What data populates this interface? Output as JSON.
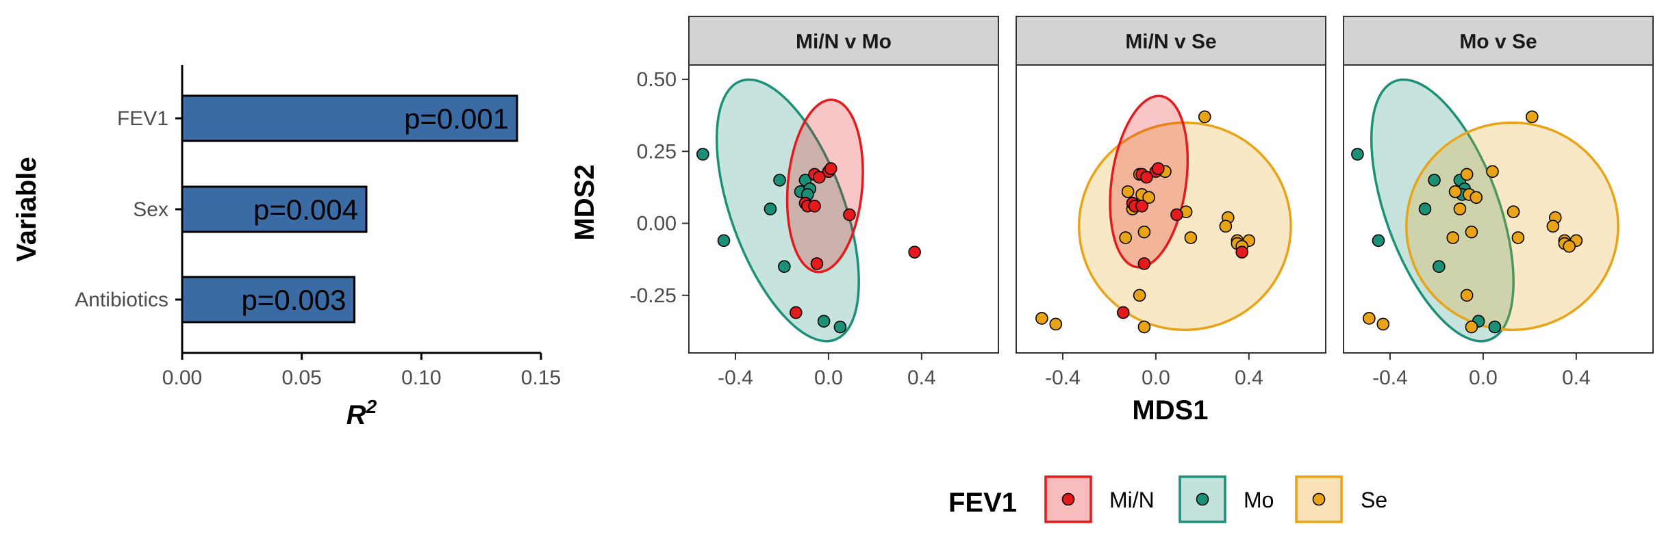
{
  "chart_data": [
    {
      "type": "bar",
      "orientation": "horizontal",
      "categories": [
        "FEV1",
        "Sex",
        "Antibiotics"
      ],
      "values": [
        0.14,
        0.077,
        0.072
      ],
      "bar_labels": [
        "p=0.001",
        "p=0.004",
        "p=0.003"
      ],
      "xlabel_base": "R",
      "xlabel_sup": "2",
      "ylabel": "Variable",
      "xlim": [
        0,
        0.15
      ],
      "x_ticks": [
        0.0,
        0.05,
        0.1,
        0.15
      ],
      "x_tick_labels": [
        "0.00",
        "0.05",
        "0.10",
        "0.15"
      ],
      "bar_color": "#3b6ba5",
      "grid": false
    },
    {
      "type": "scatter",
      "xlabel": "MDS1",
      "ylabel": "MDS2",
      "xlim": [
        -0.6,
        0.73
      ],
      "ylim": [
        -0.45,
        0.55
      ],
      "x_ticks": [
        -0.4,
        0.0,
        0.4
      ],
      "x_tick_labels": [
        "-0.4",
        "0.0",
        "0.4"
      ],
      "y_ticks": [
        -0.25,
        0.0,
        0.25,
        0.5
      ],
      "y_tick_labels": [
        "-0.25",
        "0.00",
        "0.25",
        "0.50"
      ],
      "grid": false,
      "legend": {
        "title": "FEV1",
        "placement": "bottom",
        "items": [
          {
            "label": "Mi/N",
            "color": "#e41a1c",
            "fill": "#f8bcbc"
          },
          {
            "label": "Mo",
            "color": "#1b9077",
            "fill": "#c4e2dc"
          },
          {
            "label": "Se",
            "color": "#e8a317",
            "fill": "#f9e2b8"
          }
        ]
      },
      "panels": [
        {
          "title": "Mi/N v Mo",
          "series": [
            {
              "name": "Mo",
              "points": [
                [
                  -0.54,
                  0.24
                ],
                [
                  -0.21,
                  0.15
                ],
                [
                  -0.25,
                  0.05
                ],
                [
                  -0.12,
                  0.11
                ],
                [
                  -0.1,
                  0.15
                ],
                [
                  -0.08,
                  0.12
                ],
                [
                  -0.09,
                  0.1
                ],
                [
                  -0.45,
                  -0.06
                ],
                [
                  -0.19,
                  -0.15
                ],
                [
                  -0.02,
                  -0.34
                ],
                [
                  0.05,
                  -0.36
                ]
              ],
              "ellipse": {
                "cx": -0.175,
                "cy": 0.045,
                "rx": 0.243,
                "ry": 0.478,
                "angle_deg": -20
              }
            },
            {
              "name": "Mi/N",
              "points": [
                [
                  -0.06,
                  0.17
                ],
                [
                  0.0,
                  0.18
                ],
                [
                  0.01,
                  0.19
                ],
                [
                  -0.04,
                  0.16
                ],
                [
                  -0.1,
                  0.07
                ],
                [
                  -0.09,
                  0.06
                ],
                [
                  -0.06,
                  0.06
                ],
                [
                  0.09,
                  0.03
                ],
                [
                  -0.05,
                  -0.14
                ],
                [
                  -0.14,
                  -0.31
                ],
                [
                  0.37,
                  -0.1
                ]
              ],
              "ellipse": {
                "cx": -0.015,
                "cy": 0.13,
                "rx": 0.16,
                "ry": 0.3,
                "angle_deg": 5
              }
            }
          ]
        },
        {
          "title": "Mi/N v Se",
          "series": [
            {
              "name": "Se",
              "points": [
                [
                  -0.07,
                  0.17
                ],
                [
                  0.04,
                  0.18
                ],
                [
                  -0.06,
                  0.1
                ],
                [
                  -0.03,
                  0.09
                ],
                [
                  -0.12,
                  0.11
                ],
                [
                  -0.1,
                  0.05
                ],
                [
                  0.13,
                  0.04
                ],
                [
                  0.21,
                  0.37
                ],
                [
                  0.31,
                  0.02
                ],
                [
                  0.3,
                  -0.01
                ],
                [
                  -0.05,
                  -0.03
                ],
                [
                  -0.13,
                  -0.05
                ],
                [
                  0.15,
                  -0.05
                ],
                [
                  0.35,
                  -0.06
                ],
                [
                  0.4,
                  -0.06
                ],
                [
                  0.35,
                  -0.07
                ],
                [
                  0.37,
                  -0.08
                ],
                [
                  -0.07,
                  -0.25
                ],
                [
                  -0.49,
                  -0.33
                ],
                [
                  -0.43,
                  -0.35
                ],
                [
                  -0.05,
                  -0.36
                ]
              ],
              "ellipse": {
                "cx": 0.125,
                "cy": -0.01,
                "rx": 0.455,
                "ry": 0.36,
                "angle_deg": 0
              }
            },
            {
              "name": "Mi/N",
              "points": [
                [
                  -0.06,
                  0.17
                ],
                [
                  0.0,
                  0.18
                ],
                [
                  0.01,
                  0.19
                ],
                [
                  -0.04,
                  0.16
                ],
                [
                  -0.1,
                  0.07
                ],
                [
                  -0.09,
                  0.06
                ],
                [
                  -0.06,
                  0.06
                ],
                [
                  0.09,
                  0.03
                ],
                [
                  -0.05,
                  -0.14
                ],
                [
                  -0.14,
                  -0.31
                ],
                [
                  0.37,
                  -0.1
                ]
              ],
              "ellipse": {
                "cx": -0.03,
                "cy": 0.145,
                "rx": 0.16,
                "ry": 0.3,
                "angle_deg": 8
              }
            }
          ]
        },
        {
          "title": "Mo v Se",
          "series": [
            {
              "name": "Mo",
              "points": [
                [
                  -0.54,
                  0.24
                ],
                [
                  -0.21,
                  0.15
                ],
                [
                  -0.25,
                  0.05
                ],
                [
                  -0.12,
                  0.11
                ],
                [
                  -0.1,
                  0.15
                ],
                [
                  -0.08,
                  0.12
                ],
                [
                  -0.09,
                  0.1
                ],
                [
                  -0.45,
                  -0.06
                ],
                [
                  -0.19,
                  -0.15
                ],
                [
                  -0.02,
                  -0.34
                ],
                [
                  0.05,
                  -0.36
                ]
              ],
              "ellipse": {
                "cx": -0.175,
                "cy": 0.045,
                "rx": 0.243,
                "ry": 0.478,
                "angle_deg": -20
              }
            },
            {
              "name": "Se",
              "points": [
                [
                  -0.07,
                  0.17
                ],
                [
                  0.04,
                  0.18
                ],
                [
                  -0.06,
                  0.1
                ],
                [
                  -0.03,
                  0.09
                ],
                [
                  -0.12,
                  0.11
                ],
                [
                  -0.1,
                  0.05
                ],
                [
                  0.13,
                  0.04
                ],
                [
                  0.21,
                  0.37
                ],
                [
                  0.31,
                  0.02
                ],
                [
                  0.3,
                  -0.01
                ],
                [
                  -0.05,
                  -0.03
                ],
                [
                  -0.13,
                  -0.05
                ],
                [
                  0.15,
                  -0.05
                ],
                [
                  0.35,
                  -0.06
                ],
                [
                  0.4,
                  -0.06
                ],
                [
                  0.35,
                  -0.07
                ],
                [
                  0.37,
                  -0.08
                ],
                [
                  -0.07,
                  -0.25
                ],
                [
                  -0.49,
                  -0.33
                ],
                [
                  -0.43,
                  -0.35
                ],
                [
                  -0.05,
                  -0.36
                ]
              ],
              "ellipse": {
                "cx": 0.125,
                "cy": -0.01,
                "rx": 0.455,
                "ry": 0.36,
                "angle_deg": 0
              }
            }
          ]
        }
      ]
    }
  ]
}
